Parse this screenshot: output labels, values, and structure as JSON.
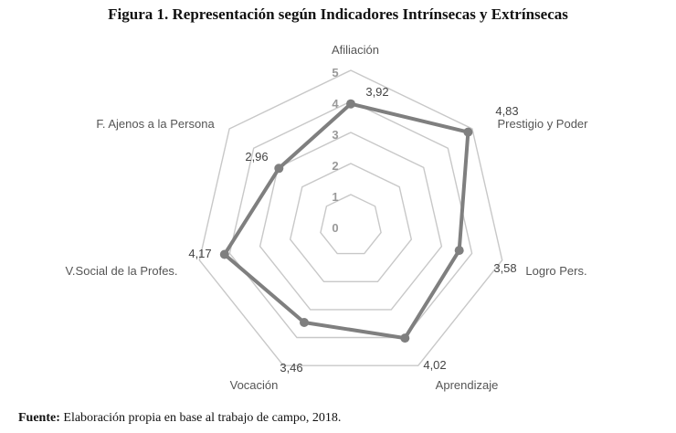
{
  "figure": {
    "title": "Figura 1. Representación según Indicadores Intrínsecas y Extrínsecas",
    "source_bold": "Fuente:",
    "source_text": " Elaboración propia en base al trabajo de campo, 2018."
  },
  "chart_data": {
    "type": "radar",
    "title": "Figura 1. Representación según Indicadores Intrínsecas y Extrínsecas",
    "categories": [
      "Afiliación",
      "Prestigio y Poder",
      "Logro Pers.",
      "Aprendizaje",
      "Vocación",
      "V.Social de la  Profes.",
      "F. Ajenos a la Persona"
    ],
    "series": [
      {
        "values": [
          3.92,
          4.83,
          3.58,
          4.02,
          3.46,
          4.17,
          2.96
        ]
      }
    ],
    "value_labels": [
      "3,92",
      "4,83",
      "3,58",
      "4,02",
      "3,46",
      "4,17",
      "2,96"
    ],
    "ticks": [
      "0",
      "1",
      "2",
      "3",
      "4",
      "5"
    ],
    "ylim": [
      0,
      5
    ],
    "grid": true,
    "colors": {
      "series": "#7f7f7f",
      "grid": "#c8c8c8",
      "tick": "#999999"
    }
  }
}
